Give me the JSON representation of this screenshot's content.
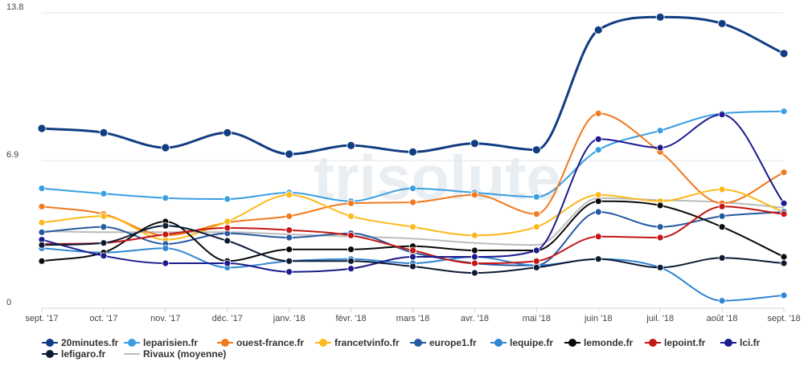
{
  "chart_data": {
    "type": "line",
    "categories": [
      "sept. '17",
      "oct. '17",
      "nov. '17",
      "déc. '17",
      "janv. '18",
      "févr. '18",
      "mars '18",
      "avr. '18",
      "mai '18",
      "juin '18",
      "juil. '18",
      "août '18",
      "sept. '18"
    ],
    "y_ticks": [
      "0",
      "6.9",
      "13.8"
    ],
    "ylim": [
      0,
      13.8
    ],
    "grid": true,
    "legend_position": "bottom",
    "watermark": "trisolute",
    "series": [
      {
        "name": "20minutes.fr",
        "color": "#123d82",
        "width": 3,
        "marker": true,
        "values": [
          8.4,
          8.2,
          7.5,
          8.2,
          7.2,
          7.6,
          7.3,
          7.7,
          7.4,
          13.0,
          13.6,
          13.3,
          11.9
        ]
      },
      {
        "name": "leparisien.fr",
        "color": "#3a9ee2",
        "width": 2,
        "marker": true,
        "values": [
          5.6,
          5.35,
          5.15,
          5.1,
          5.4,
          5.0,
          5.6,
          5.4,
          5.2,
          7.4,
          8.3,
          9.1,
          9.2
        ]
      },
      {
        "name": "ouest-france.fr",
        "color": "#f07a1e",
        "width": 2,
        "marker": true,
        "values": [
          4.75,
          4.4,
          3.4,
          4.0,
          4.3,
          4.9,
          4.95,
          5.3,
          4.4,
          9.1,
          7.3,
          4.9,
          6.35
        ]
      },
      {
        "name": "francetvinfo.fr",
        "color": "#fcb91b",
        "width": 2,
        "marker": true,
        "values": [
          4.0,
          4.3,
          3.2,
          4.05,
          5.3,
          4.3,
          3.8,
          3.4,
          3.8,
          5.3,
          5.0,
          5.55,
          4.5
        ]
      },
      {
        "name": "europe1.fr",
        "color": "#27599f",
        "width": 2,
        "marker": true,
        "values": [
          3.55,
          3.8,
          3.0,
          3.5,
          3.3,
          3.5,
          2.6,
          2.1,
          2.0,
          4.5,
          3.8,
          4.3,
          4.5
        ]
      },
      {
        "name": "lequipe.fr",
        "color": "#3186d4",
        "width": 2,
        "marker": true,
        "values": [
          2.8,
          2.6,
          2.8,
          1.9,
          2.2,
          2.3,
          2.1,
          2.4,
          2.0,
          2.3,
          1.9,
          0.35,
          0.6
        ]
      },
      {
        "name": "lemonde.fr",
        "color": "#0a0a0a",
        "width": 2,
        "marker": true,
        "values": [
          2.2,
          2.6,
          4.05,
          2.2,
          2.75,
          2.75,
          2.9,
          2.7,
          2.7,
          5.0,
          4.8,
          3.8,
          2.4
        ]
      },
      {
        "name": "lepoint.fr",
        "color": "#c41616",
        "width": 2,
        "marker": true,
        "values": [
          3.0,
          3.05,
          3.45,
          3.75,
          3.65,
          3.4,
          2.7,
          2.1,
          2.2,
          3.35,
          3.3,
          4.75,
          4.4
        ]
      },
      {
        "name": "lci.fr",
        "color": "#1b1b8e",
        "width": 2,
        "marker": true,
        "values": [
          3.2,
          2.45,
          2.1,
          2.1,
          1.7,
          1.85,
          2.4,
          2.4,
          2.7,
          7.9,
          7.5,
          9.05,
          4.9
        ]
      },
      {
        "name": "lefigaro.fr",
        "color": "#0d1b33",
        "width": 2,
        "marker": true,
        "values": [
          2.95,
          3.05,
          3.85,
          3.15,
          2.2,
          2.2,
          1.95,
          1.65,
          1.9,
          2.3,
          1.9,
          2.35,
          2.1
        ]
      },
      {
        "name": "Rivaux (moyenne)",
        "color": "#bcbcbc",
        "width": 2,
        "marker": false,
        "values": [
          3.6,
          3.55,
          3.55,
          3.55,
          3.45,
          3.35,
          3.25,
          3.05,
          2.95,
          5.15,
          5.05,
          4.95,
          4.7
        ]
      }
    ]
  }
}
